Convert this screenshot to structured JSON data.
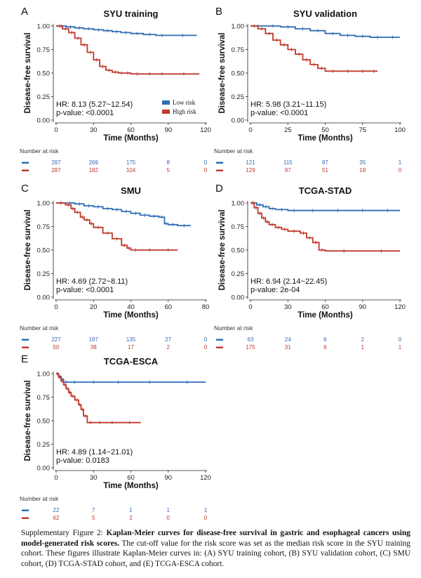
{
  "chart_data": [
    {
      "type": "line",
      "letter": "A",
      "title": "SYU training",
      "xlabel": "Time (Months)",
      "ylabel": "Disease-free survival",
      "xlim": [
        0,
        120
      ],
      "ylim": [
        0,
        1
      ],
      "xticks": [
        "0",
        "30",
        "60",
        "90",
        "120"
      ],
      "yticks": [
        "0.00",
        "0.25",
        "0.50",
        "0.75",
        "1.00"
      ],
      "hr_text": "HR: 8.13 (5.27~12.54)",
      "p_text": "p-value: <0.0001",
      "legend": [
        "Low risk",
        "High risk"
      ],
      "series": [
        {
          "name": "Low risk",
          "color": "#2f6db5",
          "x": [
            0,
            8,
            15,
            22,
            30,
            38,
            45,
            52,
            60,
            70,
            80,
            90,
            113
          ],
          "y": [
            1.0,
            0.99,
            0.98,
            0.97,
            0.96,
            0.95,
            0.94,
            0.93,
            0.92,
            0.91,
            0.9,
            0.9,
            0.9
          ]
        },
        {
          "name": "High risk",
          "color": "#c0392b",
          "x": [
            0,
            5,
            10,
            15,
            20,
            25,
            30,
            35,
            40,
            45,
            50,
            55,
            60,
            70,
            80,
            90,
            115
          ],
          "y": [
            1.0,
            0.97,
            0.93,
            0.87,
            0.8,
            0.72,
            0.64,
            0.57,
            0.53,
            0.51,
            0.5,
            0.5,
            0.49,
            0.49,
            0.49,
            0.49,
            0.49
          ]
        }
      ],
      "risk_table": {
        "label": "Number at risk",
        "low": [
          "287",
          "269",
          "175",
          "8",
          "0"
        ],
        "high": [
          "287",
          "182",
          "104",
          "5",
          "0"
        ]
      }
    },
    {
      "type": "line",
      "letter": "B",
      "title": "SYU validation",
      "xlabel": "Time (Months)",
      "ylabel": "Disease-free survival",
      "xlim": [
        0,
        100
      ],
      "ylim": [
        0,
        1
      ],
      "xticks": [
        "0",
        "25",
        "50",
        "75",
        "100"
      ],
      "yticks": [
        "0.00",
        "0.25",
        "0.50",
        "0.75",
        "1.00"
      ],
      "hr_text": "HR: 5.98 (3.21~11.15)",
      "p_text": "p-value: <0.0001",
      "series": [
        {
          "name": "Low risk",
          "color": "#2f6db5",
          "x": [
            0,
            10,
            20,
            30,
            40,
            50,
            60,
            70,
            80,
            90,
            100
          ],
          "y": [
            1.0,
            1.0,
            0.99,
            0.97,
            0.95,
            0.92,
            0.9,
            0.89,
            0.88,
            0.88,
            0.88
          ]
        },
        {
          "name": "High risk",
          "color": "#c0392b",
          "x": [
            0,
            5,
            10,
            15,
            20,
            25,
            30,
            35,
            40,
            45,
            50,
            60,
            70,
            80,
            85
          ],
          "y": [
            1.0,
            0.97,
            0.92,
            0.85,
            0.8,
            0.75,
            0.7,
            0.64,
            0.59,
            0.55,
            0.52,
            0.52,
            0.52,
            0.52,
            0.52
          ]
        }
      ],
      "risk_table": {
        "label": "Number at risk",
        "low": [
          "121",
          "115",
          "87",
          "35",
          "1"
        ],
        "high": [
          "129",
          "97",
          "51",
          "18",
          "0"
        ]
      }
    },
    {
      "type": "line",
      "letter": "C",
      "title": "SMU",
      "xlabel": "Time (Months)",
      "ylabel": "Disease-free survival",
      "xlim": [
        0,
        80
      ],
      "ylim": [
        0,
        1
      ],
      "xticks": [
        "0",
        "20",
        "40",
        "60",
        "80"
      ],
      "yticks": [
        "0.00",
        "0.25",
        "0.50",
        "0.75",
        "1.00"
      ],
      "hr_text": "HR: 4.69 (2.72~8.11)",
      "p_text": "p-value: <0.0001",
      "series": [
        {
          "name": "Low risk",
          "color": "#2f6db5",
          "x": [
            0,
            5,
            10,
            15,
            20,
            25,
            30,
            35,
            40,
            45,
            50,
            55,
            58,
            60,
            65,
            72
          ],
          "y": [
            1.0,
            1.0,
            0.99,
            0.97,
            0.96,
            0.94,
            0.93,
            0.91,
            0.89,
            0.87,
            0.86,
            0.85,
            0.78,
            0.77,
            0.76,
            0.76
          ]
        },
        {
          "name": "High risk",
          "color": "#c0392b",
          "x": [
            0,
            5,
            8,
            10,
            13,
            15,
            18,
            20,
            25,
            30,
            35,
            38,
            40,
            45,
            55,
            65
          ],
          "y": [
            1.0,
            0.98,
            0.94,
            0.9,
            0.85,
            0.82,
            0.78,
            0.74,
            0.68,
            0.62,
            0.55,
            0.52,
            0.5,
            0.5,
            0.5,
            0.5
          ]
        }
      ],
      "risk_table": {
        "label": "Number at risk",
        "low": [
          "227",
          "197",
          "135",
          "27",
          "0"
        ],
        "high": [
          "50",
          "38",
          "17",
          "2",
          "0"
        ]
      }
    },
    {
      "type": "line",
      "letter": "D",
      "title": "TCGA-STAD",
      "xlabel": "Time (Months)",
      "ylabel": "Disease-free survival",
      "xlim": [
        0,
        120
      ],
      "ylim": [
        0,
        1
      ],
      "xticks": [
        "0",
        "30",
        "60",
        "90",
        "120"
      ],
      "yticks": [
        "0.00",
        "0.25",
        "0.50",
        "0.75",
        "1.00"
      ],
      "hr_text": "HR: 6.94 (2.14~22.45)",
      "p_text": "p-value: 2e-04",
      "series": [
        {
          "name": "Low risk",
          "color": "#2f6db5",
          "x": [
            0,
            5,
            10,
            15,
            20,
            30,
            40,
            60,
            80,
            100,
            120
          ],
          "y": [
            1.0,
            0.98,
            0.96,
            0.94,
            0.93,
            0.92,
            0.92,
            0.92,
            0.92,
            0.92,
            0.92
          ]
        },
        {
          "name": "High risk",
          "color": "#c0392b",
          "x": [
            0,
            3,
            6,
            9,
            12,
            15,
            20,
            25,
            30,
            40,
            45,
            50,
            55,
            60,
            90,
            120
          ],
          "y": [
            1.0,
            0.95,
            0.89,
            0.84,
            0.8,
            0.77,
            0.74,
            0.72,
            0.7,
            0.68,
            0.63,
            0.58,
            0.5,
            0.49,
            0.49,
            0.49
          ]
        }
      ],
      "risk_table": {
        "label": "Number at risk",
        "low": [
          "63",
          "24",
          "6",
          "2",
          "0"
        ],
        "high": [
          "175",
          "31",
          "6",
          "1",
          "1"
        ]
      }
    },
    {
      "type": "line",
      "letter": "E",
      "title": "TCGA-ESCA",
      "xlabel": "Time (Months)",
      "ylabel": "Disease-free survival",
      "xlim": [
        0,
        120
      ],
      "ylim": [
        0,
        1
      ],
      "xticks": [
        "0",
        "30",
        "60",
        "90",
        "120"
      ],
      "yticks": [
        "0.00",
        "0.25",
        "0.50",
        "0.75",
        "1.00"
      ],
      "hr_text": "HR: 4.89 (1.14~21.01)",
      "p_text": "p-value: 0.0183",
      "series": [
        {
          "name": "Low risk",
          "color": "#2f6db5",
          "x": [
            0,
            2,
            4,
            6,
            10,
            20,
            40,
            60,
            90,
            120
          ],
          "y": [
            1.0,
            0.97,
            0.94,
            0.91,
            0.91,
            0.91,
            0.91,
            0.91,
            0.91,
            0.91
          ]
        },
        {
          "name": "High risk",
          "color": "#c0392b",
          "x": [
            0,
            2,
            4,
            6,
            8,
            10,
            12,
            15,
            18,
            20,
            22,
            25,
            30,
            40,
            50,
            68
          ],
          "y": [
            1.0,
            0.96,
            0.92,
            0.88,
            0.84,
            0.8,
            0.76,
            0.72,
            0.67,
            0.62,
            0.55,
            0.48,
            0.48,
            0.48,
            0.48,
            0.48
          ]
        }
      ],
      "risk_table": {
        "label": "Number at risk",
        "low": [
          "22",
          "7",
          "1",
          "1",
          "1"
        ],
        "high": [
          "62",
          "5",
          "2",
          "0",
          "0"
        ]
      }
    }
  ],
  "caption": {
    "prefix": "Supplementary Figure 2: ",
    "bold": "Kaplan-Meier curves for disease-free survival in gastric and esophageal cancers using model-generated risk scores.",
    "rest": " The cut-off value for the risk score was set as the median risk score in the SYU training cohort. These figures illustrate Kaplan-Meier curves in: (A) SYU training cohort, (B) SYU validation cohort, (C) SMU cohort, (D) TCGA-STAD cohort, and (E) TCGA-ESCA cohort."
  }
}
